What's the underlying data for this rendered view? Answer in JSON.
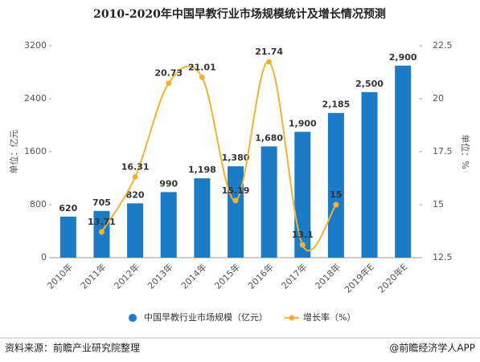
{
  "chart_data": {
    "type": "bar-line",
    "title": "2010-2020年中国早教行业市场规模统计及增长情况预测",
    "categories": [
      "2010年",
      "2011年",
      "2012年",
      "2013年",
      "2014年",
      "2015年",
      "2016年",
      "2017年",
      "2018年",
      "2019年E",
      "2020年E"
    ],
    "series": [
      {
        "name": "中国早教行业市场规模（亿元）",
        "type": "bar",
        "color": "#1b7bc6",
        "values": [
          620,
          705,
          820,
          990,
          1198,
          1380,
          1680,
          1900,
          2185,
          2500,
          2900
        ],
        "value_labels": [
          "620",
          "705",
          "820",
          "990",
          "1,198",
          "1,380",
          "1,680",
          "1,900",
          "2,185",
          "2,500",
          "2,900"
        ]
      },
      {
        "name": "增长率（%）",
        "type": "line",
        "axis": "y2",
        "color": "#f2b233",
        "values": [
          null,
          13.71,
          16.31,
          20.73,
          21.01,
          15.19,
          21.74,
          13.1,
          15,
          null,
          null
        ]
      }
    ],
    "ylabel": "单位：亿元",
    "y2label": "单位：%",
    "ylim": [
      0,
      3200
    ],
    "yticks": [
      0,
      800,
      1600,
      2400,
      3200
    ],
    "y2lim": [
      12.5,
      22.5
    ],
    "y2ticks": [
      12.5,
      15,
      17.5,
      20,
      22.5
    ],
    "source": "资料来源：前瞻产业研究院整理",
    "credit": "@前瞻经济学人APP"
  }
}
